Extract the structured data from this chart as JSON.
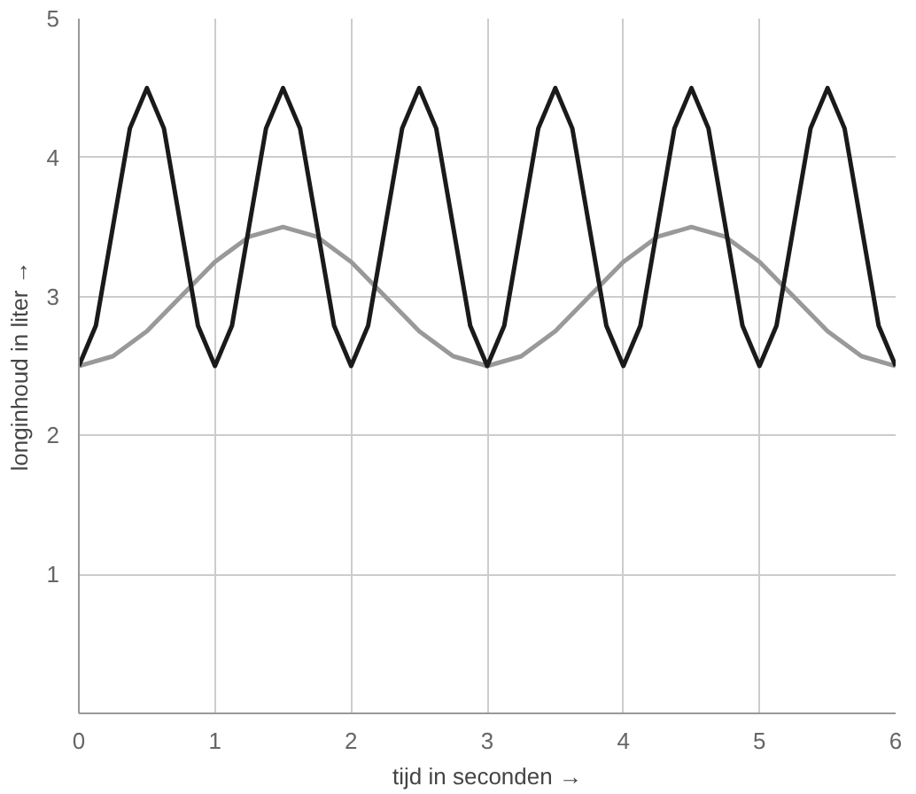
{
  "chart_data": {
    "type": "line",
    "xlabel": "tijd in seconden →",
    "ylabel": "longinhoud in liter →",
    "xlim": [
      0,
      6
    ],
    "ylim": [
      0,
      5
    ],
    "xticks": [
      0,
      1,
      2,
      3,
      4,
      5,
      6
    ],
    "yticks": [
      1,
      2,
      3,
      4,
      5
    ],
    "grid": true,
    "line_style": "solid",
    "series": [
      {
        "color": "#999999",
        "x": [
          0,
          0.25,
          0.5,
          0.75,
          1,
          1.25,
          1.5,
          1.75,
          2,
          2.25,
          2.5,
          2.75,
          3,
          3.25,
          3.5,
          3.75,
          4,
          4.25,
          4.5,
          4.75,
          5,
          5.25,
          5.5,
          5.75,
          6
        ],
        "values": [
          2.5,
          2.57,
          2.75,
          3,
          3.25,
          3.43,
          3.5,
          3.43,
          3.25,
          3,
          2.75,
          2.57,
          2.5,
          2.57,
          2.75,
          3,
          3.25,
          3.43,
          3.5,
          3.43,
          3.25,
          3,
          2.75,
          2.57,
          2.5
        ]
      },
      {
        "color": "#1a1a1a",
        "x": [
          0,
          0.125,
          0.25,
          0.375,
          0.5,
          0.625,
          0.75,
          0.875,
          1,
          1.125,
          1.25,
          1.375,
          1.5,
          1.625,
          1.75,
          1.875,
          2,
          2.125,
          2.25,
          2.375,
          2.5,
          2.625,
          2.75,
          2.875,
          3,
          3.125,
          3.25,
          3.375,
          3.5,
          3.625,
          3.75,
          3.875,
          4,
          4.125,
          4.25,
          4.375,
          4.5,
          4.625,
          4.75,
          4.875,
          5,
          5.125,
          5.25,
          5.375,
          5.5,
          5.625,
          5.75,
          5.875,
          6
        ],
        "values": [
          2.5,
          2.79,
          3.5,
          4.21,
          4.5,
          4.21,
          3.5,
          2.79,
          2.5,
          2.79,
          3.5,
          4.21,
          4.5,
          4.21,
          3.5,
          2.79,
          2.5,
          2.79,
          3.5,
          4.21,
          4.5,
          4.21,
          3.5,
          2.79,
          2.5,
          2.79,
          3.5,
          4.21,
          4.5,
          4.21,
          3.5,
          2.79,
          2.5,
          2.79,
          3.5,
          4.21,
          4.5,
          4.21,
          3.5,
          2.79,
          2.5,
          2.79,
          3.5,
          4.21,
          4.5,
          4.21,
          3.5,
          2.79,
          2.5
        ]
      }
    ]
  }
}
